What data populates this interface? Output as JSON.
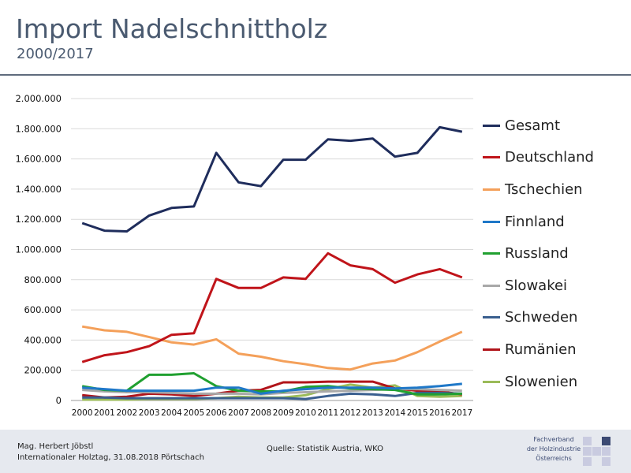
{
  "header": {
    "title": "Import Nadelschnittholz",
    "subtitle": "2000/2017"
  },
  "footer": {
    "author_line1": "Mag. Herbert Jöbstl",
    "author_line2": "Internationaler Holztag, 31.08.2018 Pörtschach",
    "source": "Quelle: Statistik Austria, WKO",
    "logo_line1": "Fachverband",
    "logo_line2": "der Holzindustrie",
    "logo_line3": "Österreichs"
  },
  "chart_data": {
    "type": "line",
    "title": "",
    "xlabel": "",
    "ylabel": "",
    "ylim": [
      0,
      2000000
    ],
    "yticks": [
      0,
      200000,
      400000,
      600000,
      800000,
      1000000,
      1200000,
      1400000,
      1600000,
      1800000,
      2000000
    ],
    "ytick_labels": [
      "0",
      "200.000",
      "400.000",
      "600.000",
      "800.000",
      "1.000.000",
      "1.200.000",
      "1.400.000",
      "1.600.000",
      "1.800.000",
      "2.000.000"
    ],
    "grid": true,
    "legend_position": "right",
    "categories": [
      "2000",
      "2001",
      "2002",
      "2003",
      "2004",
      "2005",
      "2006",
      "2007",
      "2008",
      "2009",
      "2010",
      "2011",
      "2012",
      "2013",
      "2014",
      "2015",
      "2016",
      "2017"
    ],
    "series": [
      {
        "name": "Gesamt",
        "color": "#1f2d5c",
        "values": [
          1175000,
          1125000,
          1120000,
          1225000,
          1275000,
          1285000,
          1640000,
          1445000,
          1420000,
          1595000,
          1595000,
          1730000,
          1720000,
          1735000,
          1615000,
          1640000,
          1810000,
          1780000
        ]
      },
      {
        "name": "Deutschland",
        "color": "#c0141a",
        "values": [
          255000,
          300000,
          320000,
          360000,
          435000,
          445000,
          805000,
          745000,
          745000,
          815000,
          805000,
          975000,
          895000,
          870000,
          780000,
          835000,
          870000,
          815000
        ]
      },
      {
        "name": "Tschechien",
        "color": "#f4a05a",
        "values": [
          490000,
          465000,
          455000,
          420000,
          385000,
          370000,
          405000,
          310000,
          290000,
          260000,
          240000,
          215000,
          205000,
          245000,
          265000,
          320000,
          390000,
          455000
        ]
      },
      {
        "name": "Finnland",
        "color": "#1f78c8",
        "values": [
          85000,
          75000,
          65000,
          65000,
          65000,
          65000,
          85000,
          85000,
          45000,
          65000,
          75000,
          85000,
          85000,
          85000,
          80000,
          85000,
          95000,
          110000
        ]
      },
      {
        "name": "Russland",
        "color": "#20a030",
        "values": [
          95000,
          70000,
          65000,
          170000,
          170000,
          180000,
          95000,
          65000,
          60000,
          60000,
          90000,
          95000,
          80000,
          75000,
          70000,
          40000,
          40000,
          45000
        ]
      },
      {
        "name": "Slowakei",
        "color": "#a8a8a8",
        "values": [
          70000,
          60000,
          55000,
          55000,
          50000,
          45000,
          45000,
          45000,
          40000,
          50000,
          55000,
          60000,
          65000,
          70000,
          75000,
          75000,
          70000,
          65000
        ]
      },
      {
        "name": "Schweden",
        "color": "#3a5f8f",
        "values": [
          20000,
          20000,
          15000,
          15000,
          15000,
          15000,
          15000,
          15000,
          15000,
          15000,
          10000,
          30000,
          45000,
          40000,
          30000,
          50000,
          50000,
          45000
        ]
      },
      {
        "name": "Rumänien",
        "color": "#b0141a",
        "values": [
          35000,
          20000,
          25000,
          45000,
          40000,
          30000,
          45000,
          65000,
          70000,
          120000,
          120000,
          125000,
          125000,
          125000,
          80000,
          65000,
          60000,
          40000
        ]
      },
      {
        "name": "Slowenien",
        "color": "#9bbb59",
        "values": [
          5000,
          5000,
          5000,
          10000,
          10000,
          10000,
          15000,
          25000,
          20000,
          20000,
          35000,
          75000,
          105000,
          85000,
          100000,
          30000,
          25000,
          30000
        ]
      }
    ]
  }
}
